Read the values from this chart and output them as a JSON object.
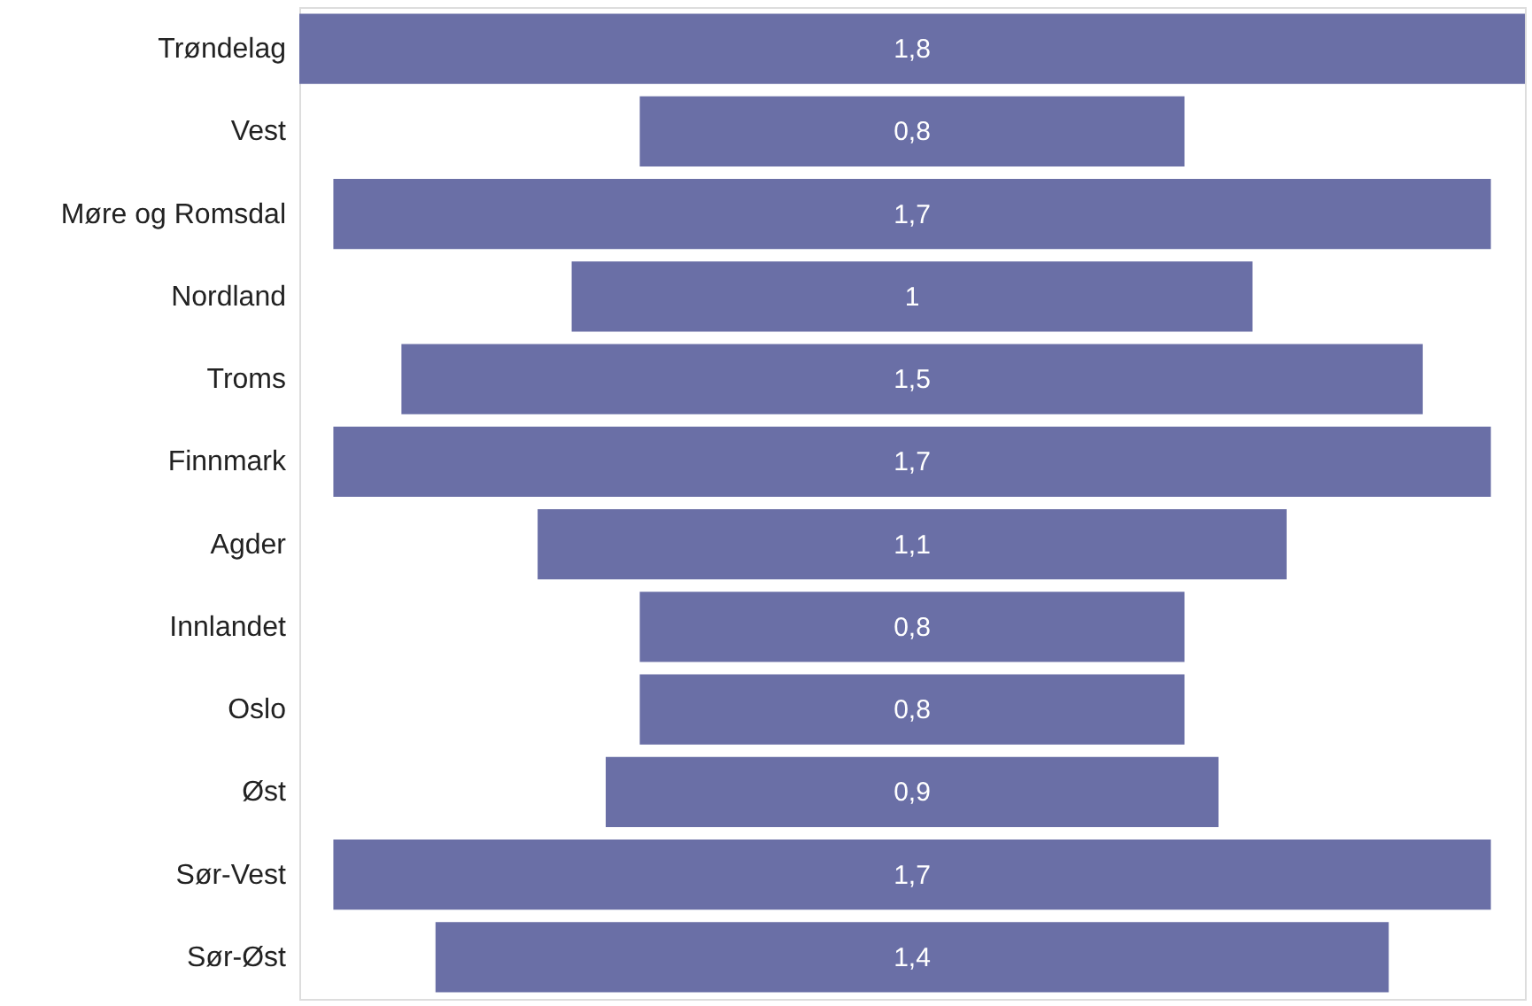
{
  "chart_data": {
    "type": "other",
    "categories": [
      "Trøndelag",
      "Vest",
      "Møre og Romsdal",
      "Nordland",
      "Troms",
      "Finnmark",
      "Agder",
      "Innlandet",
      "Oslo",
      "Øst",
      "Sør-Vest",
      "Sør-Øst"
    ],
    "values": [
      1.8,
      0.8,
      1.7,
      1.0,
      1.5,
      1.7,
      1.1,
      0.8,
      0.8,
      0.9,
      1.7,
      1.4
    ],
    "value_labels": [
      "1,8",
      "0,8",
      "1,7",
      "1",
      "1,5",
      "1,7",
      "1,1",
      "0,8",
      "0,8",
      "0,9",
      "1,7",
      "1,4"
    ],
    "color": "#6a6fa6"
  }
}
